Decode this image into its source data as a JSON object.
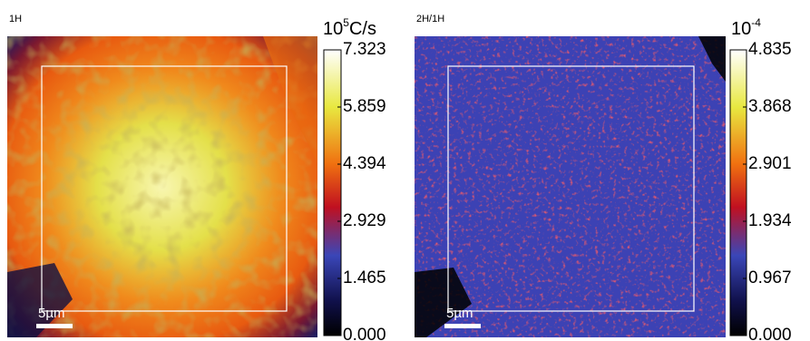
{
  "panels": [
    {
      "label": "1H",
      "unit": {
        "base": "10",
        "exponent": "5",
        "suffix": "C/s"
      },
      "colorbar_ticks": [
        "0.000",
        "1.465",
        "2.929",
        "4.394",
        "5.859",
        "7.323"
      ],
      "scale_bar": "5µm"
    },
    {
      "label": "2H/1H",
      "unit": {
        "base": "10",
        "exponent": "-4",
        "suffix": ""
      },
      "colorbar_ticks": [
        "0.000",
        "0.967",
        "1.934",
        "2.901",
        "3.868",
        "4.835"
      ],
      "scale_bar": "5µm"
    }
  ]
}
